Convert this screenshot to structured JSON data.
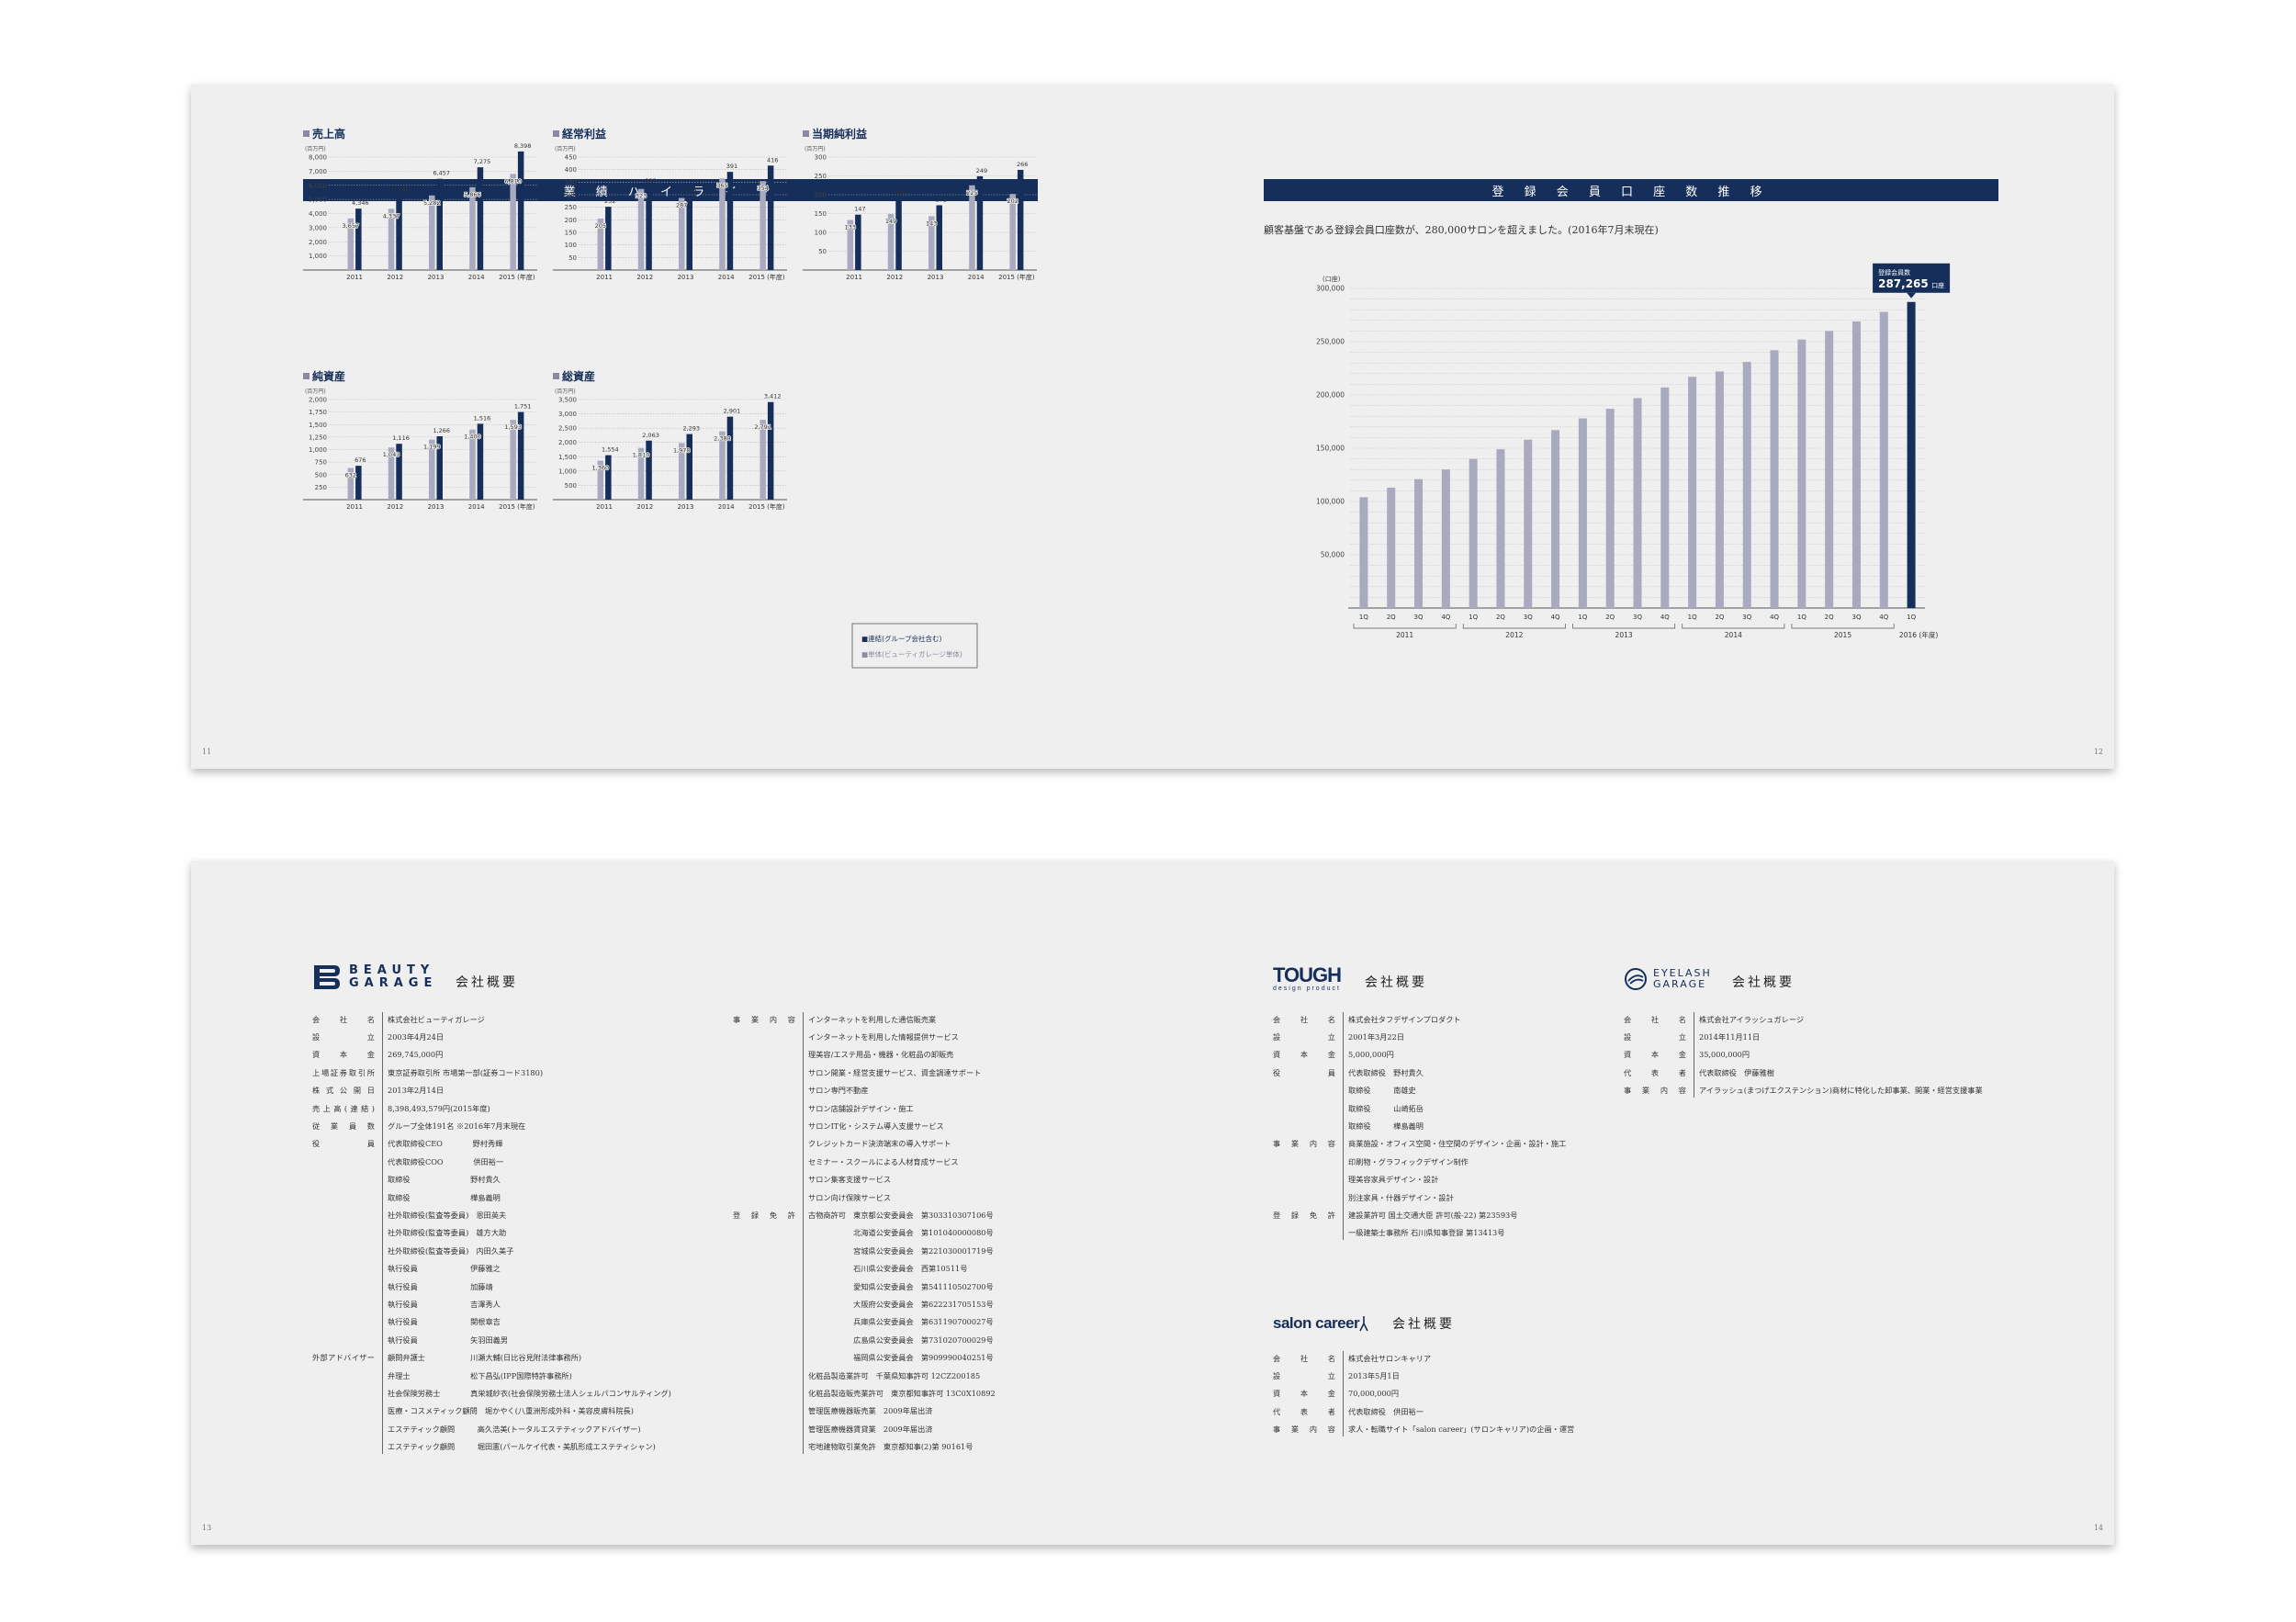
{
  "top_spread": {
    "left_title": "業 績 ハ イ ラ イ ト",
    "right_title": "登 録 会 員 口 座 数 推 移",
    "right_description": "顧客基盤である登録会員口座数が、280,000サロンを超えました。(2016年7月末現在)",
    "page_left": "11",
    "page_right": "12",
    "legend": [
      "■連結(グループ会社含む)",
      "■単体(ビューティガレージ単体)"
    ],
    "callout_label": "登録会員数",
    "callout_value": "287,265",
    "callout_unit": "口座"
  },
  "colors": {
    "dark": "#152e5a",
    "light": "#a9a9c0",
    "bg": "#efefef"
  },
  "chart_data": [
    {
      "type": "bar",
      "title": "売上高",
      "unit": "(百万円)",
      "categories": [
        "2011",
        "2012",
        "2013",
        "2014",
        "2015 (年度)"
      ],
      "ylim": [
        0,
        8000
      ],
      "ticks": [
        "1,000",
        "2,000",
        "3,000",
        "4,000",
        "5,000",
        "6,000",
        "7,000",
        "8,000"
      ],
      "series": [
        {
          "name": "単体",
          "values": [
            3657,
            4337,
            5282,
            5866,
            6810
          ],
          "labels": [
            "3,657",
            "4,337",
            "5,282",
            "5,866",
            "6,810"
          ]
        },
        {
          "name": "連結",
          "values": [
            4346,
            5289,
            6457,
            7275,
            8398
          ],
          "labels": [
            "4,346",
            "5,289",
            "6,457",
            "7,275",
            "8,398"
          ]
        }
      ]
    },
    {
      "type": "bar",
      "title": "経常利益",
      "unit": "(百万円)",
      "categories": [
        "2011",
        "2012",
        "2013",
        "2014",
        "2015 (年度)"
      ],
      "ylim": [
        0,
        450
      ],
      "ticks": [
        "50",
        "100",
        "150",
        "200",
        "250",
        "300",
        "350",
        "400",
        "450"
      ],
      "series": [
        {
          "name": "単体",
          "values": [
            205,
            323,
            287,
            365,
            354
          ],
          "labels": [
            "205",
            "323",
            "287",
            "365",
            "354"
          ]
        },
        {
          "name": "連結",
          "values": [
            252,
            333,
            295,
            391,
            416
          ],
          "labels": [
            "252",
            "333",
            "295",
            "391",
            "416"
          ]
        }
      ]
    },
    {
      "type": "bar",
      "title": "当期純利益",
      "unit": "(百万円)",
      "categories": [
        "2011",
        "2012",
        "2013",
        "2014",
        "2015 (年度)"
      ],
      "ylim": [
        0,
        300
      ],
      "ticks": [
        "50",
        "100",
        "150",
        "200",
        "250",
        "300"
      ],
      "series": [
        {
          "name": "単体",
          "values": [
            133,
            149,
            143,
            225,
            202
          ],
          "labels": [
            "133",
            "149",
            "143",
            "225",
            "202"
          ]
        },
        {
          "name": "連結",
          "values": [
            147,
            190,
            172,
            249,
            266
          ],
          "labels": [
            "147",
            "190",
            "172",
            "249",
            "266"
          ]
        }
      ]
    },
    {
      "type": "bar",
      "title": "純資産",
      "unit": "(百万円)",
      "categories": [
        "2011",
        "2012",
        "2013",
        "2014",
        "2015 (年度)"
      ],
      "ylim": [
        0,
        2000
      ],
      "ticks": [
        "250",
        "500",
        "750",
        "1,000",
        "1,250",
        "1,500",
        "1,750",
        "2,000"
      ],
      "series": [
        {
          "name": "単体",
          "values": [
            632,
            1043,
            1199,
            1400,
            1593
          ],
          "labels": [
            "632",
            "1,043",
            "1,199",
            "1,400",
            "1,593"
          ]
        },
        {
          "name": "連結",
          "values": [
            676,
            1116,
            1266,
            1516,
            1751
          ],
          "labels": [
            "676",
            "1,116",
            "1,266",
            "1,516",
            "1,751"
          ]
        }
      ]
    },
    {
      "type": "bar",
      "title": "総資産",
      "unit": "(百万円)",
      "categories": [
        "2011",
        "2012",
        "2013",
        "2014",
        "2015 (年度)"
      ],
      "ylim": [
        0,
        3500
      ],
      "ticks": [
        "500",
        "1,000",
        "1,500",
        "2,000",
        "2,500",
        "3,000",
        "3,500"
      ],
      "series": [
        {
          "name": "単体",
          "values": [
            1360,
            1810,
            1978,
            2388,
            2791
          ],
          "labels": [
            "1,360",
            "1,810",
            "1,978",
            "2,388",
            "2,791"
          ]
        },
        {
          "name": "連結",
          "values": [
            1554,
            2063,
            2293,
            2901,
            3412
          ],
          "labels": [
            "1,554",
            "2,063",
            "2,293",
            "2,901",
            "3,412"
          ]
        }
      ]
    },
    {
      "type": "bar",
      "title": "登録会員口座数推移",
      "unit": "(口座)",
      "ylim": [
        0,
        300000
      ],
      "ticks": [
        "50,000",
        "100,000",
        "150,000",
        "200,000",
        "250,000",
        "300,000"
      ],
      "categories": [
        "1Q",
        "2Q",
        "3Q",
        "4Q",
        "1Q",
        "2Q",
        "3Q",
        "4Q",
        "1Q",
        "2Q",
        "3Q",
        "4Q",
        "1Q",
        "2Q",
        "3Q",
        "4Q",
        "1Q",
        "2Q",
        "3Q",
        "4Q",
        "1Q"
      ],
      "years": [
        "2011",
        "2012",
        "2013",
        "2014",
        "2015",
        "2016 (年度)"
      ],
      "values": [
        104000,
        113000,
        121000,
        130000,
        140000,
        149000,
        158000,
        167000,
        178000,
        187000,
        197000,
        207000,
        217000,
        222000,
        231000,
        242000,
        252000,
        260000,
        269000,
        278000,
        287265
      ]
    }
  ],
  "bottom_spread": {
    "page_left": "13",
    "page_right": "14",
    "beauty_garage": {
      "logo_line1": "BEAUTY",
      "logo_line2": "GARAGE",
      "title": "会社概要",
      "rows": [
        {
          "k": "会 社 名",
          "v": "株式会社ビューティガレージ"
        },
        {
          "k": "設 立",
          "v": "2003年4月24日"
        },
        {
          "k": "資 本 金",
          "v": "269,745,000円"
        },
        {
          "k": "上場証券取引所",
          "v": "東京証券取引所 市場第一部(証券コード3180)"
        },
        {
          "k": "株式公開日",
          "v": "2013年2月14日"
        },
        {
          "k": "売上高(連結)",
          "v": "8,398,493,579円(2015年度)"
        },
        {
          "k": "従業員数",
          "v": "グループ全体191名 ※2016年7月末現在"
        },
        {
          "k": "役 員",
          "v": "代表取締役CEO　　　　野村秀輝"
        },
        {
          "k": "",
          "v": "代表取締役COO　　　　供田裕一"
        },
        {
          "k": "",
          "v": "取締役　　　　　　　　野村貴久"
        },
        {
          "k": "",
          "v": "取締役　　　　　　　　樺島義明"
        },
        {
          "k": "",
          "v": "社外取締役(監査等委員)　恩田英夫"
        },
        {
          "k": "",
          "v": "社外取締役(監査等委員)　雄方大助"
        },
        {
          "k": "",
          "v": "社外取締役(監査等委員)　内田久美子"
        },
        {
          "k": "",
          "v": "執行役員　　　　　　　伊藤雅之"
        },
        {
          "k": "",
          "v": "執行役員　　　　　　　加藤靖"
        },
        {
          "k": "",
          "v": "執行役員　　　　　　　吉澤秀人"
        },
        {
          "k": "",
          "v": "執行役員　　　　　　　関根章吉"
        },
        {
          "k": "",
          "v": "執行役員　　　　　　　矢羽田義男"
        },
        {
          "k": "外部アドバイザー",
          "v": "顧問弁護士　　　　　　川瀬大輔(日比谷見附法律事務所)"
        },
        {
          "k": "",
          "v": "弁理士　　　　　　　　松下昌弘(IPP国際特許事務所)"
        },
        {
          "k": "",
          "v": "社会保険労務士　　　　真栄城紗衣(社会保険労務士法人シェルパコンサルティング)"
        },
        {
          "k": "",
          "v": "医療・コスメティック顧問　堀かやく(八重洲形成外科・美容皮膚科院長)"
        },
        {
          "k": "",
          "v": "エステティック顧問　　　高久浩美(トータルエステティックアドバイザー)"
        },
        {
          "k": "",
          "v": "エステティック顧問　　　堀田憲(パールケイ代表・美肌形成エステティシャン)"
        }
      ],
      "business_label": "事 業 内 容",
      "business": [
        "インターネットを利用した通信販売業",
        "インターネットを利用した情報提供サービス",
        "理美容/エステ用品・機器・化粧品の卸販売",
        "サロン開業・経営支援サービス、資金調達サポート",
        "サロン専門不動産",
        "サロン店舗設計デザイン・施工",
        "サロンIT化・システム導入支援サービス",
        "クレジットカード決済端末の導入サポート",
        "セミナー・スクールによる人材育成サービス",
        "サロン集客支援サービス",
        "サロン向け保険サービス"
      ],
      "license_label": "登 録 免 許",
      "licenses": [
        "古物商許可　東京都公安委員会　第303310307106号",
        "　　　　　　北海道公安委員会　第101040000080号",
        "　　　　　　宮城県公安委員会　第221030001719号",
        "　　　　　　石川県公安委員会　西第10511号",
        "　　　　　　愛知県公安委員会　第541110502700号",
        "　　　　　　大阪府公安委員会　第622231705153号",
        "　　　　　　兵庫県公安委員会　第631190700027号",
        "　　　　　　広島県公安委員会　第731020700029号",
        "　　　　　　福岡県公安委員会　第909990040251号",
        "化粧品製造業許可　千葉県知事許可 12CZ200185",
        "化粧品製造販売業許可　東京都知事許可 13C0X10892",
        "管理医療機器販売業　2009年届出済",
        "管理医療機器賃貸業　2009年届出済",
        "宅地建物取引業免許　東京都知事(2)第 90161号"
      ]
    },
    "tough": {
      "logo": "TOUGH",
      "logo_sub": "design product",
      "title": "会社概要",
      "rows": [
        {
          "k": "会 社 名",
          "v": "株式会社タフデザインプロダクト"
        },
        {
          "k": "設 立",
          "v": "2001年3月22日"
        },
        {
          "k": "資 本 金",
          "v": "5,000,000円"
        },
        {
          "k": "役 員",
          "v": "代表取締役　野村貴久"
        },
        {
          "k": "",
          "v": "取締役　　　南雄史"
        },
        {
          "k": "",
          "v": "取締役　　　山崎拓岳"
        },
        {
          "k": "",
          "v": "取締役　　　樺島義明"
        },
        {
          "k": "事 業 内 容",
          "v": "商業施設・オフィス空間・住空間のデザイン・企画・設計・施工"
        },
        {
          "k": "",
          "v": "印刷物・グラフィックデザイン制作"
        },
        {
          "k": "",
          "v": "理美容家具デザイン・設計"
        },
        {
          "k": "",
          "v": "別注家具・什器デザイン・設計"
        },
        {
          "k": "登 録 免 許",
          "v": "建設業許可 国土交通大臣 許可(般-22) 第23593号"
        },
        {
          "k": "",
          "v": "一級建築士事務所 石川県知事登録 第13413号"
        }
      ]
    },
    "eyelash": {
      "logo_line1": "EYELASH",
      "logo_line2": "GARAGE",
      "title": "会社概要",
      "rows": [
        {
          "k": "会 社 名",
          "v": "株式会社アイラッシュガレージ"
        },
        {
          "k": "設 立",
          "v": "2014年11月11日"
        },
        {
          "k": "資 本 金",
          "v": "35,000,000円"
        },
        {
          "k": "代 表 者",
          "v": "代表取締役　伊藤雅樹"
        },
        {
          "k": "事 業 内 容",
          "v": "アイラッシュ(まつげエクステンション)商材に特化した卸事業、開業・経営支援事業"
        }
      ]
    },
    "salon_career": {
      "logo": "salon career",
      "title": "会社概要",
      "rows": [
        {
          "k": "会 社 名",
          "v": "株式会社サロンキャリア"
        },
        {
          "k": "設 立",
          "v": "2013年5月1日"
        },
        {
          "k": "資 本 金",
          "v": "70,000,000円"
        },
        {
          "k": "代 表 者",
          "v": "代表取締役　供田裕一"
        },
        {
          "k": "事 業 内 容",
          "v": "求人・転職サイト「salon career」(サロンキャリア)の企画・運営"
        }
      ]
    }
  }
}
